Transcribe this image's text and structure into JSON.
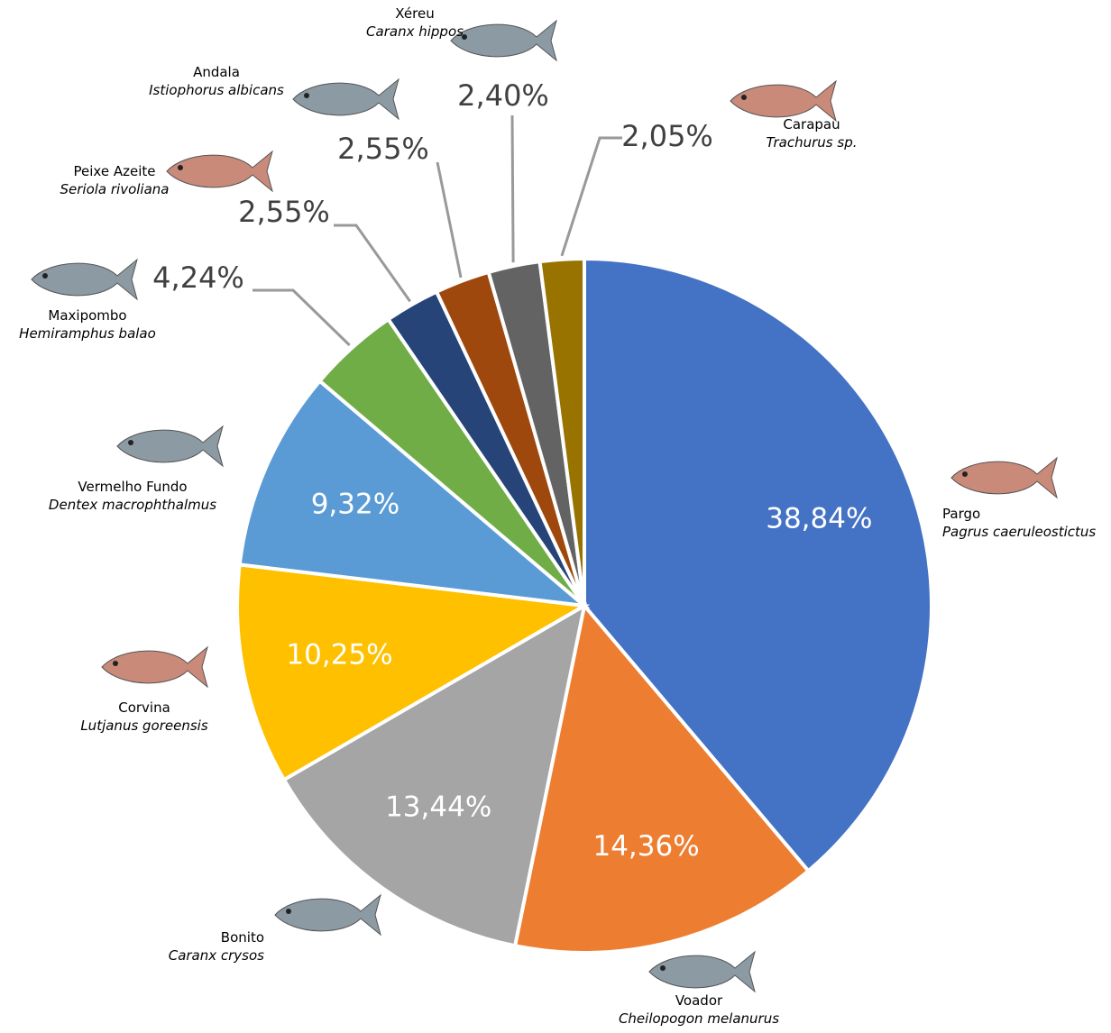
{
  "chart_data": {
    "type": "pie",
    "categories": [
      "Pargo",
      "Voador",
      "Bonito",
      "Corvina",
      "Vermelho Fundo",
      "Maxipombo",
      "Peixe Azeite",
      "Andala",
      "Xéreu",
      "Carapau"
    ],
    "scientific_names": [
      "Pagrus caeruleostictus",
      "Cheilopogon melanurus",
      "Caranx crysos",
      "Lutjanus goreensis",
      "Dentex macrophthalmus",
      "Hemiramphus balao",
      "Seriola rivoliana",
      "Istiophorus albicans",
      "Caranx hippos",
      "Trachurus sp."
    ],
    "values": [
      38.84,
      14.36,
      13.44,
      10.25,
      9.32,
      4.24,
      2.55,
      2.55,
      2.4,
      2.05
    ],
    "value_labels": [
      "38,84%",
      "14,36%",
      "13,44%",
      "10,25%",
      "9,32%",
      "4,24%",
      "2,55%",
      "2,55%",
      "2,40%",
      "2,05%"
    ],
    "colors": [
      "#4472c4",
      "#ed7d31",
      "#a5a5a5",
      "#ffc000",
      "#5b9bd5",
      "#70ad47",
      "#264478",
      "#9e480e",
      "#636363",
      "#997300"
    ]
  }
}
